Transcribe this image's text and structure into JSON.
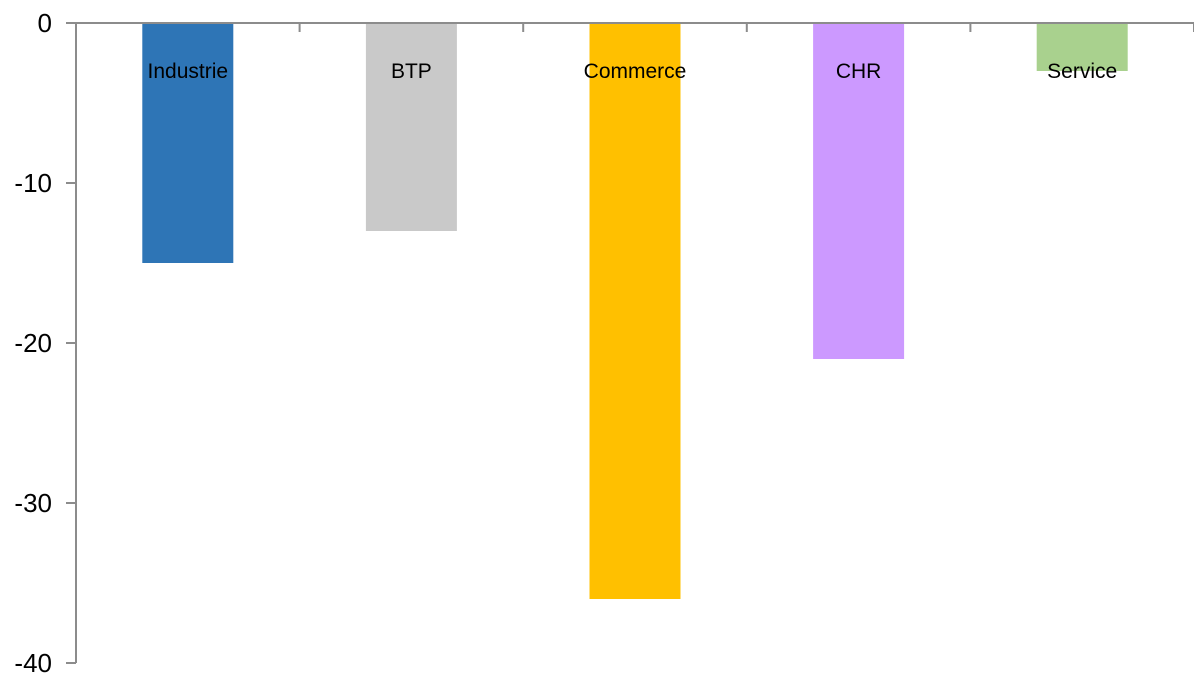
{
  "chart_data": {
    "type": "bar",
    "categories": [
      "Industrie",
      "BTP",
      "Commerce",
      "CHR",
      "Service"
    ],
    "values": [
      -15,
      -13,
      -36,
      -21,
      -3
    ],
    "colors": [
      "#2e75b6",
      "#c9c9c9",
      "#ffc000",
      "#cc99ff",
      "#a9d18e"
    ],
    "ylim": [
      -40,
      0
    ],
    "yticks": [
      0,
      -10,
      -20,
      -30,
      -40
    ],
    "ytick_labels": [
      "0",
      "-10",
      "-20",
      "-30",
      "-40"
    ],
    "title": "",
    "xlabel": "",
    "ylabel": "",
    "grid": false,
    "legend": "none"
  }
}
